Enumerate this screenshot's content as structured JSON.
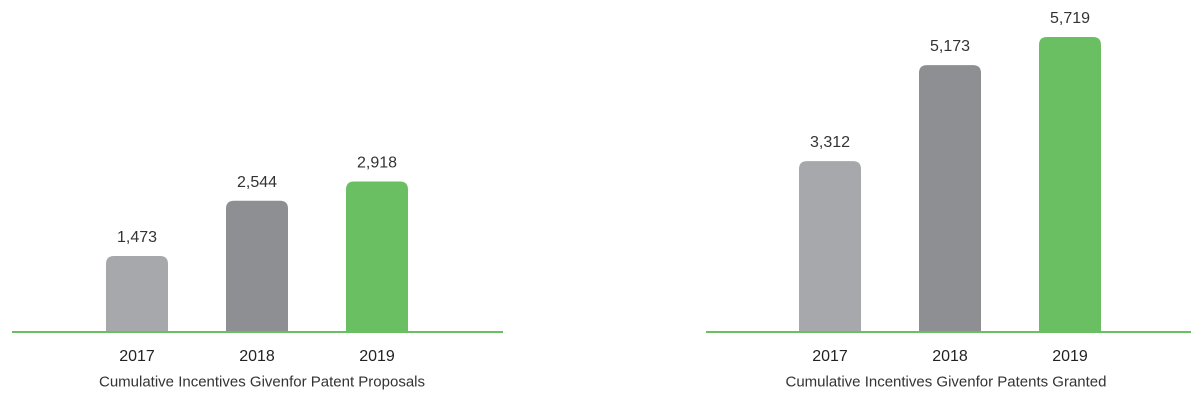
{
  "chart_data": [
    {
      "type": "bar",
      "title": "Cumulative Incentives Givenfor Patent Proposals",
      "categories": [
        "2017",
        "2018",
        "2019"
      ],
      "values": [
        1473,
        2544,
        2918
      ],
      "value_labels": [
        "1,473",
        "2,544",
        "2,918"
      ],
      "ylim": [
        0,
        6000
      ],
      "grid": false,
      "bar_colors": [
        "#a7a8ab",
        "#8e8f93",
        "#6abf63"
      ],
      "baseline_color": "#6abf63"
    },
    {
      "type": "bar",
      "title": "Cumulative Incentives Givenfor Patents Granted",
      "categories": [
        "2017",
        "2018",
        "2019"
      ],
      "values": [
        3312,
        5173,
        5719
      ],
      "value_labels": [
        "3,312",
        "5,173",
        "5,719"
      ],
      "ylim": [
        0,
        6000
      ],
      "grid": false,
      "bar_colors": [
        "#a7a8ab",
        "#8e8f93",
        "#6abf63"
      ],
      "baseline_color": "#6abf63"
    }
  ]
}
